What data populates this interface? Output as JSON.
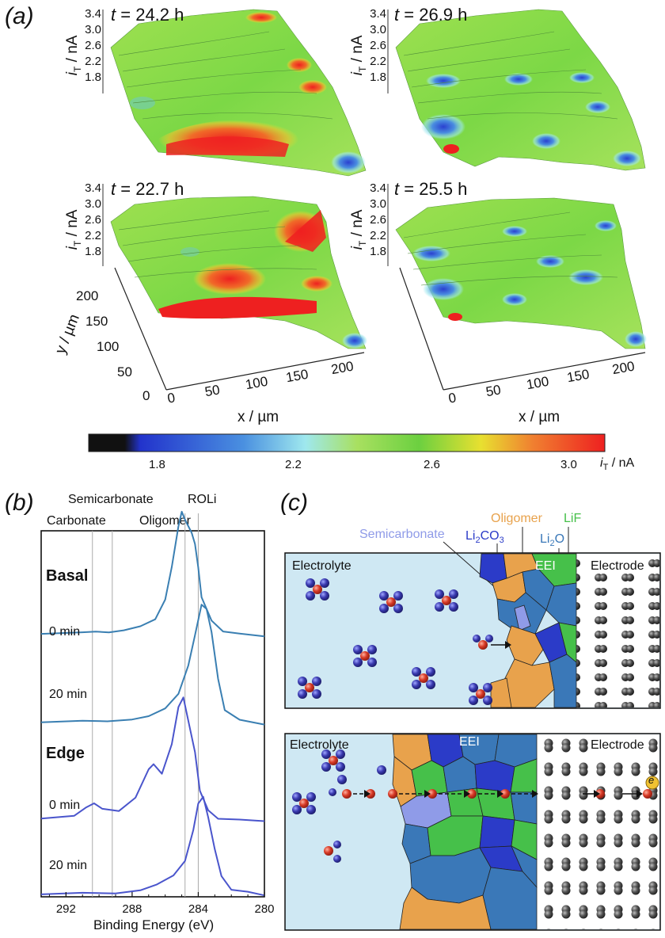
{
  "panel_a": {
    "label": "(a)",
    "surfaces": [
      {
        "t_label": "t",
        "t_value": "= 24.2 h"
      },
      {
        "t_label": "t",
        "t_value": "= 26.9 h"
      },
      {
        "t_label": "t",
        "t_value": "= 22.7 h"
      },
      {
        "t_label": "t",
        "t_value": "= 25.5 h"
      }
    ],
    "z_ticks": [
      "3.4",
      "3.0",
      "2.6",
      "2.2",
      "1.8"
    ],
    "z_axis_label": "i",
    "z_axis_sub": "T",
    "z_axis_unit": " / nA",
    "x_ticks": [
      "0",
      "50",
      "100",
      "150",
      "200"
    ],
    "x_axis_label": "x / µm",
    "y_ticks": [
      "0",
      "50",
      "100",
      "150",
      "200"
    ],
    "y_axis_label": "y / µm",
    "colorbar": {
      "ticks": [
        "1.8",
        "2.2",
        "2.6",
        "3.0"
      ],
      "label": "i",
      "label_sub": "T",
      "label_unit": " / nA",
      "stops": [
        "#111111",
        "#2233cc",
        "#4a90e0",
        "#9fe8ee",
        "#a8e060",
        "#6cd040",
        "#e8e030",
        "#f08030",
        "#ee2020"
      ]
    }
  },
  "panel_b": {
    "label": "(b)",
    "top_labels": [
      "Semicarbonate",
      "ROLi"
    ],
    "second_labels": [
      "Carbonate",
      "Oligomer"
    ],
    "groups": [
      "Basal",
      "Edge"
    ],
    "trace_labels": [
      "0 min",
      "20 min",
      "0 min",
      "20 min"
    ],
    "chart_data": {
      "type": "line",
      "xlabel": "Binding Energy (eV)",
      "x_ticks": [
        "292",
        "288",
        "284",
        "280"
      ],
      "xlim": [
        293.5,
        280
      ],
      "ref_lines": [
        290.4,
        289.2,
        284.8,
        284.0
      ],
      "series": [
        {
          "name": "Basal 0 min",
          "color": "#3a7fb2",
          "offset": 0.72,
          "x": [
            293.5,
            291,
            290.2,
            289.4,
            288.5,
            287.5,
            286.6,
            286,
            285.6,
            285.2,
            285.0,
            284.8,
            284.4,
            284.2,
            284.0,
            283.8,
            283.2,
            282.5,
            281.5,
            280
          ],
          "y": [
            0.02,
            0.03,
            0.05,
            0.04,
            0.05,
            0.08,
            0.15,
            0.28,
            0.55,
            0.88,
            1.0,
            0.92,
            0.82,
            0.75,
            0.55,
            0.32,
            0.12,
            0.05,
            0.02,
            0.0
          ]
        },
        {
          "name": "Basal 20 min",
          "color": "#3a7fb2",
          "offset": 0.47,
          "x": [
            293.5,
            291,
            289.5,
            288,
            287,
            286,
            285.2,
            284.6,
            284.2,
            283.8,
            283.5,
            283.2,
            282.8,
            282.4,
            281.5,
            280
          ],
          "y": [
            0.01,
            0.02,
            0.03,
            0.04,
            0.06,
            0.12,
            0.25,
            0.45,
            0.7,
            0.95,
            0.92,
            0.72,
            0.35,
            0.12,
            0.03,
            0.0
          ]
        },
        {
          "name": "Edge 0 min",
          "color": "#4a55cc",
          "offset": 0.19,
          "x": [
            293.5,
            291.5,
            290.8,
            290.3,
            289.8,
            288.8,
            287.8,
            287.0,
            286.7,
            286.2,
            285.6,
            285.2,
            284.9,
            284.5,
            284.2,
            283.9,
            283.4,
            282.8,
            281.5,
            280
          ],
          "y": [
            0.02,
            0.04,
            0.12,
            0.15,
            0.1,
            0.08,
            0.2,
            0.4,
            0.45,
            0.38,
            0.62,
            0.9,
            0.98,
            0.75,
            0.55,
            0.25,
            0.08,
            0.03,
            0.01,
            0.0
          ]
        },
        {
          "name": "Edge 20 min",
          "color": "#4a55cc",
          "offset": -0.02,
          "x": [
            293.5,
            291,
            289,
            287.5,
            286.5,
            285.5,
            284.8,
            284.3,
            284.0,
            283.7,
            283.4,
            283.0,
            282.6,
            282.0,
            281,
            280
          ],
          "y": [
            0.0,
            0.01,
            0.02,
            0.04,
            0.08,
            0.15,
            0.28,
            0.5,
            0.72,
            0.78,
            0.62,
            0.35,
            0.14,
            0.05,
            0.02,
            0.0
          ]
        }
      ]
    }
  },
  "panel_c": {
    "label": "(c)",
    "labels": {
      "semicarbonate": "Semicarbonate",
      "li2co3_main": "Li",
      "li2co3_sub": "2",
      "li2co3_tail": "CO",
      "li2co3_sub2": "3",
      "oligomer": "Oligomer",
      "lif": "LiF",
      "li2o_main": "Li",
      "li2o_sub": "2",
      "li2o_tail": "O",
      "electrolyte": "Electrolyte",
      "eei": "EEI",
      "electrode": "Electrode",
      "electron": "e"
    },
    "colors": {
      "electrolyte_bg": "#cfe8f3",
      "semicarbonate": "#8f9be8",
      "li2co3": "#2b3bc8",
      "oligomer": "#e8a24c",
      "lif": "#46c04a",
      "li2o": "#3a78b8",
      "electrode": "#3c3c3c",
      "ion": "#d83a26",
      "solvent": "#3a3ab0"
    }
  }
}
